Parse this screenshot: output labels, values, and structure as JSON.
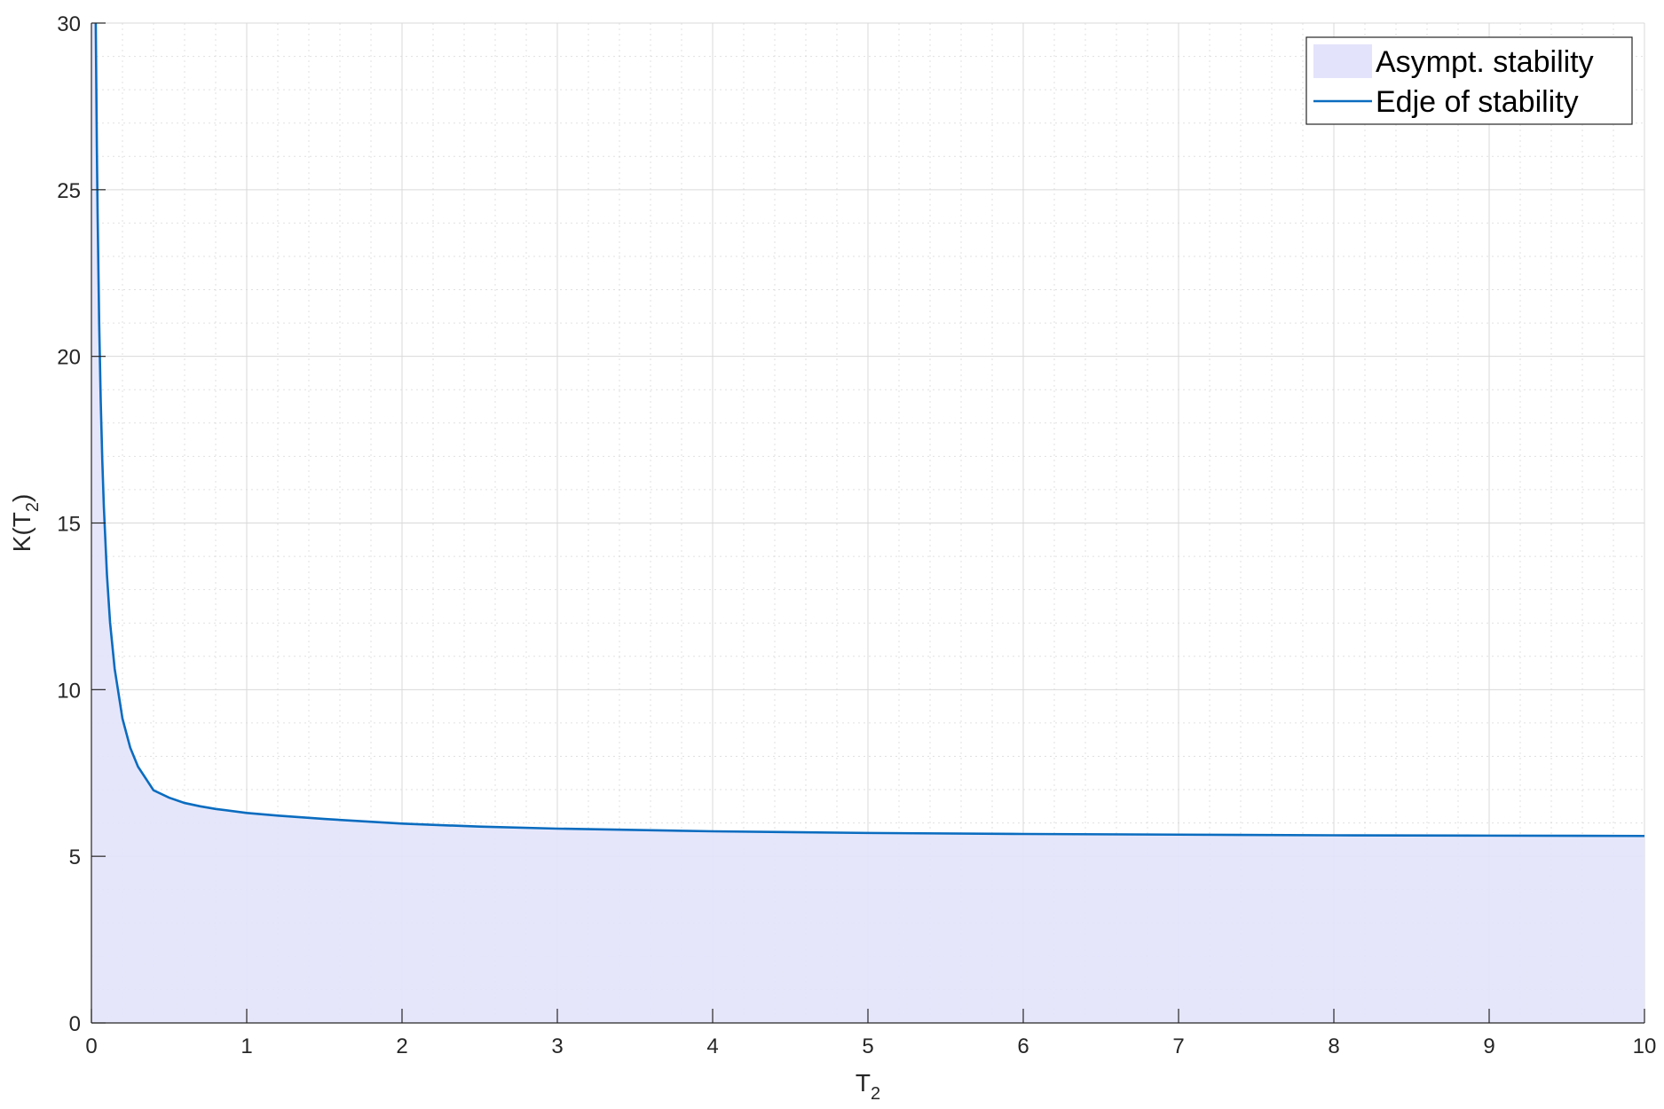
{
  "chart_data": {
    "type": "area",
    "title": "",
    "xlabel": {
      "main": "T",
      "sub": "2"
    },
    "ylabel": {
      "main": "K(T",
      "sub": "2",
      "close": ")"
    },
    "xlim": [
      0,
      10
    ],
    "ylim": [
      0,
      30
    ],
    "xticks": [
      0,
      1,
      2,
      3,
      4,
      5,
      6,
      7,
      8,
      9,
      10
    ],
    "yticks": [
      0,
      5,
      10,
      15,
      20,
      25,
      30
    ],
    "xtick_labels": [
      "0",
      "1",
      "2",
      "3",
      "4",
      "5",
      "6",
      "7",
      "8",
      "9",
      "10"
    ],
    "ytick_labels": [
      "0",
      "5",
      "10",
      "15",
      "20",
      "25",
      "30"
    ],
    "grid": true,
    "minor_grid": true,
    "legend_position": "top-right",
    "colors": {
      "fill": "#e3e3fb",
      "line": "#0a6cbf",
      "grid": "#d9d9d9",
      "axis": "#262626"
    },
    "series": [
      {
        "name": "Edje of stability",
        "kind": "line",
        "x": [
          0.028,
          0.035,
          0.04,
          0.05,
          0.06,
          0.07,
          0.08,
          0.1,
          0.12,
          0.15,
          0.2,
          0.25,
          0.3,
          0.4,
          0.5,
          0.6,
          0.7,
          0.8,
          1.0,
          1.2,
          1.5,
          2.0,
          2.5,
          3.0,
          4.0,
          5.0,
          6.0,
          7.0,
          8.0,
          9.0,
          10.0
        ],
        "values": [
          30.0,
          26.3,
          24.25,
          21.0,
          18.66,
          16.89,
          15.5,
          13.45,
          12.02,
          10.62,
          9.13,
          8.26,
          7.69,
          6.98,
          6.76,
          6.6,
          6.5,
          6.42,
          6.3,
          6.22,
          6.12,
          5.98,
          5.89,
          5.83,
          5.75,
          5.7,
          5.67,
          5.65,
          5.63,
          5.62,
          5.61
        ]
      },
      {
        "name": "Asympt. stability",
        "kind": "area",
        "fill_below": "Edje of stability"
      }
    ],
    "legend": [
      "Asympt. stability",
      "Edje of stability"
    ]
  }
}
